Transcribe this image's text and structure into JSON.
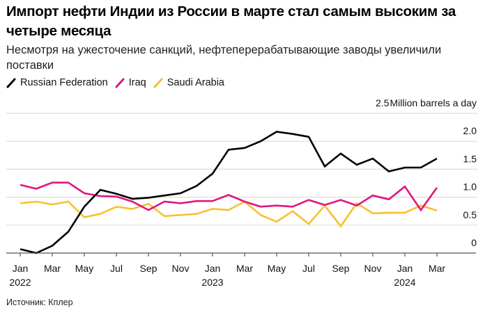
{
  "title": "Импорт нефти Индии из России в марте стал самым высоким за четыре месяца",
  "subtitle": "Несмотря на ужесточение санкций, нефтеперерабатывающие заводы увеличили поставки",
  "source": "Источник: Кплер",
  "chart_data": {
    "type": "line",
    "title": "Импорт нефти Индии из России в марте стал самым высоким за четыре месяца",
    "subtitle": "Несмотря на ужесточение санкций, нефтеперерабатывающие заводы увеличили поставки",
    "xlabel": "",
    "ylabel": "Million barrels a day",
    "ylim": [
      0,
      2.5
    ],
    "yticks": [
      {
        "value": 2.5,
        "label": "2.5"
      },
      {
        "value": 2.0,
        "label": "2.0"
      },
      {
        "value": 1.5,
        "label": "1.5"
      },
      {
        "value": 1.0,
        "label": "1.0"
      },
      {
        "value": 0.5,
        "label": "0.5"
      },
      {
        "value": 0,
        "label": "0"
      }
    ],
    "y_unit_label": "Million barrels a day",
    "y_axis_side": "right",
    "grid": true,
    "legend_position": "top-left",
    "x": [
      "2022-01",
      "2022-02",
      "2022-03",
      "2022-04",
      "2022-05",
      "2022-06",
      "2022-07",
      "2022-08",
      "2022-09",
      "2022-10",
      "2022-11",
      "2022-12",
      "2023-01",
      "2023-02",
      "2023-03",
      "2023-04",
      "2023-05",
      "2023-06",
      "2023-07",
      "2023-08",
      "2023-09",
      "2023-10",
      "2023-11",
      "2023-12",
      "2024-01",
      "2024-02",
      "2024-03"
    ],
    "xticks": [
      {
        "index": 0,
        "label": "Jan",
        "year": "2022"
      },
      {
        "index": 2,
        "label": "Mar",
        "year": ""
      },
      {
        "index": 4,
        "label": "May",
        "year": ""
      },
      {
        "index": 6,
        "label": "Jul",
        "year": ""
      },
      {
        "index": 8,
        "label": "Sep",
        "year": ""
      },
      {
        "index": 10,
        "label": "Nov",
        "year": ""
      },
      {
        "index": 12,
        "label": "Jan",
        "year": "2023"
      },
      {
        "index": 14,
        "label": "Mar",
        "year": ""
      },
      {
        "index": 16,
        "label": "May",
        "year": ""
      },
      {
        "index": 18,
        "label": "Jul",
        "year": ""
      },
      {
        "index": 20,
        "label": "Sep",
        "year": ""
      },
      {
        "index": 22,
        "label": "Nov",
        "year": ""
      },
      {
        "index": 24,
        "label": "Jan",
        "year": "2024"
      },
      {
        "index": 26,
        "label": "Mar",
        "year": ""
      }
    ],
    "series": [
      {
        "name": "Russian Federation",
        "color": "#000000",
        "values": [
          0.07,
          0.0,
          0.13,
          0.38,
          0.83,
          1.13,
          1.06,
          0.97,
          0.99,
          1.03,
          1.07,
          1.2,
          1.42,
          1.85,
          1.88,
          2.0,
          2.17,
          2.13,
          2.08,
          1.55,
          1.78,
          1.58,
          1.69,
          1.46,
          1.53,
          1.53,
          1.69
        ]
      },
      {
        "name": "Iraq",
        "color": "#e0157f",
        "values": [
          1.22,
          1.15,
          1.26,
          1.26,
          1.07,
          1.02,
          1.01,
          0.92,
          0.77,
          0.92,
          0.89,
          0.93,
          0.93,
          1.04,
          0.92,
          0.83,
          0.85,
          0.83,
          0.95,
          0.86,
          0.95,
          0.85,
          1.03,
          0.96,
          1.19,
          0.77,
          1.17
        ]
      },
      {
        "name": "Saudi Arabia",
        "color": "#f6c12f",
        "values": [
          0.89,
          0.92,
          0.87,
          0.92,
          0.64,
          0.7,
          0.83,
          0.79,
          0.88,
          0.66,
          0.68,
          0.7,
          0.79,
          0.77,
          0.92,
          0.68,
          0.56,
          0.75,
          0.52,
          0.85,
          0.48,
          0.89,
          0.71,
          0.72,
          0.72,
          0.85,
          0.76
        ]
      }
    ]
  }
}
